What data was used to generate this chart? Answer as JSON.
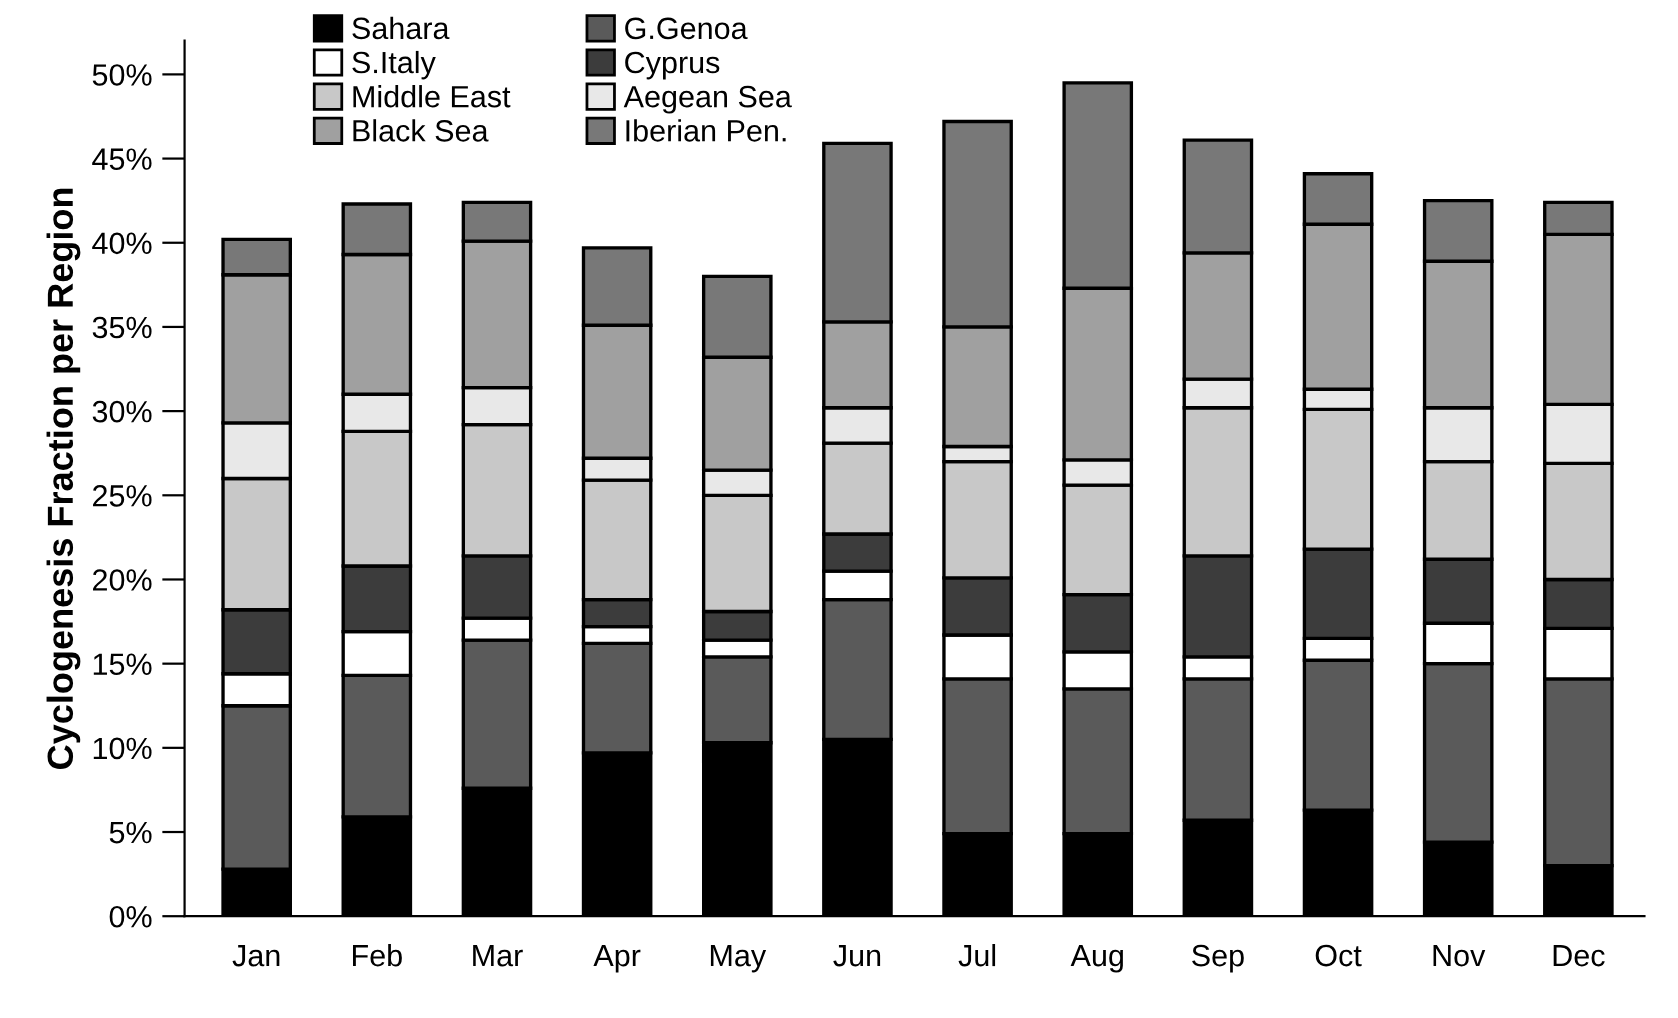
{
  "chart_data": {
    "type": "bar",
    "stacked": true,
    "ylabel": "Cyclogenesis Fraction per Region",
    "categories": [
      "Jan",
      "Feb",
      "Mar",
      "Apr",
      "May",
      "Jun",
      "Jul",
      "Aug",
      "Sep",
      "Oct",
      "Nov",
      "Dec"
    ],
    "series": [
      {
        "name": "Sahara",
        "color": "#000000",
        "values": [
          2.8,
          5.9,
          7.6,
          9.7,
          10.3,
          10.5,
          4.9,
          4.9,
          5.7,
          6.3,
          4.4,
          3.0
        ]
      },
      {
        "name": "G.Genoa",
        "color": "#5a5a5a",
        "values": [
          9.7,
          8.4,
          8.8,
          6.5,
          5.1,
          8.3,
          9.2,
          8.6,
          8.4,
          8.9,
          10.6,
          11.1
        ]
      },
      {
        "name": "S.Italy",
        "color": "#ffffff",
        "values": [
          1.9,
          2.6,
          1.3,
          1.0,
          1.0,
          1.7,
          2.6,
          2.2,
          1.3,
          1.3,
          2.4,
          3.0
        ]
      },
      {
        "name": "Cyprus",
        "color": "#3c3c3c",
        "values": [
          3.8,
          3.9,
          3.7,
          1.6,
          1.7,
          2.2,
          3.4,
          3.4,
          6.0,
          5.3,
          3.8,
          2.9
        ]
      },
      {
        "name": "Middle East",
        "color": "#c8c8c8",
        "values": [
          7.8,
          8.0,
          7.8,
          7.1,
          6.9,
          5.4,
          6.9,
          6.5,
          8.8,
          8.3,
          5.8,
          6.9
        ]
      },
      {
        "name": "Aegean Sea",
        "color": "#e8e8e8",
        "values": [
          3.3,
          2.2,
          2.2,
          1.3,
          1.5,
          2.1,
          0.9,
          1.5,
          1.7,
          1.2,
          3.2,
          3.5
        ]
      },
      {
        "name": "Black Sea",
        "color": "#a0a0a0",
        "values": [
          8.8,
          8.3,
          8.7,
          7.9,
          6.7,
          5.1,
          7.1,
          10.2,
          7.5,
          9.8,
          8.7,
          10.1
        ]
      },
      {
        "name": "Iberian Pen.",
        "color": "#787878",
        "values": [
          2.1,
          3.0,
          2.3,
          4.6,
          4.8,
          10.6,
          12.2,
          12.2,
          6.7,
          3.0,
          3.6,
          1.9
        ]
      }
    ],
    "ylim": [
      0,
      52
    ],
    "yticks": [
      {
        "value": 0,
        "label": "0%"
      },
      {
        "value": 5,
        "label": "5%"
      },
      {
        "value": 10,
        "label": "10%"
      },
      {
        "value": 15,
        "label": "15%"
      },
      {
        "value": 20,
        "label": "20%"
      },
      {
        "value": 25,
        "label": "25%"
      },
      {
        "value": 30,
        "label": "30%"
      },
      {
        "value": 35,
        "label": "35%"
      },
      {
        "value": 40,
        "label": "40%"
      },
      {
        "value": 45,
        "label": "45%"
      },
      {
        "value": 50,
        "label": "50%"
      }
    ],
    "legend": "top left",
    "grid": false
  }
}
